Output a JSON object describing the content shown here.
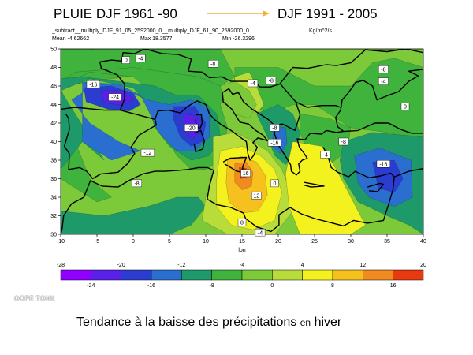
{
  "header": {
    "title_left": "PLUIE DJF 1961 -90",
    "title_right": "DJF 1991 - 2005",
    "arrow_color": "#f2b33d",
    "expr": "_subtract__multiply_DJF_91_05_2592000_0__multiply_DJF_61_90_2592000_0",
    "units": "Kg/m^2/s",
    "mean": "Mean -4.62662",
    "max": "Max 18.3577",
    "min": "Min -26.3296"
  },
  "chart_data": {
    "type": "heatmap",
    "title": "",
    "xlabel": "lon",
    "ylabel": "",
    "xlim": [
      -10,
      40
    ],
    "ylim": [
      30,
      50
    ],
    "x_ticks": [
      "-10",
      "-5",
      "0",
      "5",
      "10",
      "15",
      "20",
      "25",
      "30",
      "35",
      "40"
    ],
    "y_ticks": [
      "30",
      "32",
      "34",
      "36",
      "38",
      "40",
      "42",
      "44",
      "46",
      "48",
      "50"
    ],
    "features": [
      {
        "label": "-24",
        "lon": -2.5,
        "lat": 44.8,
        "value": -24
      },
      {
        "label": "-20",
        "lon": 8.0,
        "lat": 41.5,
        "value": -20
      },
      {
        "label": "-16",
        "lon": -5.5,
        "lat": 46.2,
        "value": -16
      },
      {
        "label": "-12",
        "lon": 2.0,
        "lat": 38.8,
        "value": -12
      },
      {
        "label": "-16",
        "lon": 34.5,
        "lat": 37.6,
        "value": -16
      },
      {
        "label": "-16",
        "lon": 19.5,
        "lat": 39.9,
        "value": -16
      },
      {
        "label": "16",
        "lon": 15.5,
        "lat": 36.6,
        "value": 16
      },
      {
        "label": "12",
        "lon": 17.0,
        "lat": 34.2,
        "value": 12
      },
      {
        "label": "8",
        "lon": 15.0,
        "lat": 31.3,
        "value": 8
      }
    ],
    "contour_labels": [
      {
        "label": "0",
        "lon": -1.0,
        "lat": 48.8
      },
      {
        "label": "-4",
        "lon": 1.0,
        "lat": 49.0
      },
      {
        "label": "-8",
        "lon": 11.0,
        "lat": 48.4
      },
      {
        "label": "-4",
        "lon": 16.5,
        "lat": 46.3
      },
      {
        "label": "-8",
        "lon": 19.0,
        "lat": 46.6
      },
      {
        "label": "-8",
        "lon": 34.5,
        "lat": 47.8
      },
      {
        "label": "-4",
        "lon": 34.5,
        "lat": 46.5
      },
      {
        "label": "0",
        "lon": 37.5,
        "lat": 43.8
      },
      {
        "label": "-8",
        "lon": 19.5,
        "lat": 41.5
      },
      {
        "label": "-8",
        "lon": 29.0,
        "lat": 40.0
      },
      {
        "label": "-4",
        "lon": 26.5,
        "lat": 38.6
      },
      {
        "label": "-8",
        "lon": 0.5,
        "lat": 35.5
      },
      {
        "label": "0",
        "lon": 19.5,
        "lat": 35.5
      },
      {
        "label": "-4",
        "lon": 17.5,
        "lat": 30.2
      }
    ],
    "colorbar": {
      "top_labels": [
        "-28",
        "-20",
        "-12",
        "-4",
        "4",
        "12",
        "20"
      ],
      "bottom_labels": [
        "-24",
        "-16",
        "-8",
        "0",
        "8",
        "16"
      ],
      "bins": [
        {
          "from": -28,
          "to": -24,
          "color": "#8f00ff"
        },
        {
          "from": -24,
          "to": -20,
          "color": "#5a20e8"
        },
        {
          "from": -20,
          "to": -16,
          "color": "#2b3dd0"
        },
        {
          "from": -16,
          "to": -12,
          "color": "#2a6ed0"
        },
        {
          "from": -12,
          "to": -8,
          "color": "#1e9a6a"
        },
        {
          "from": -8,
          "to": -4,
          "color": "#3fb33c"
        },
        {
          "from": -4,
          "to": 0,
          "color": "#7cc93a"
        },
        {
          "from": 0,
          "to": 4,
          "color": "#b8dd3a"
        },
        {
          "from": 4,
          "to": 8,
          "color": "#f4f21e"
        },
        {
          "from": 8,
          "to": 12,
          "color": "#f6c01f"
        },
        {
          "from": 12,
          "to": 16,
          "color": "#f08b1f"
        },
        {
          "from": 16,
          "to": 20,
          "color": "#e83a10"
        }
      ]
    }
  },
  "watermark": "OOPE TONK",
  "caption": {
    "main": "Tendance à la baisse des précipitations",
    "small": "en",
    "end": "hiver"
  }
}
